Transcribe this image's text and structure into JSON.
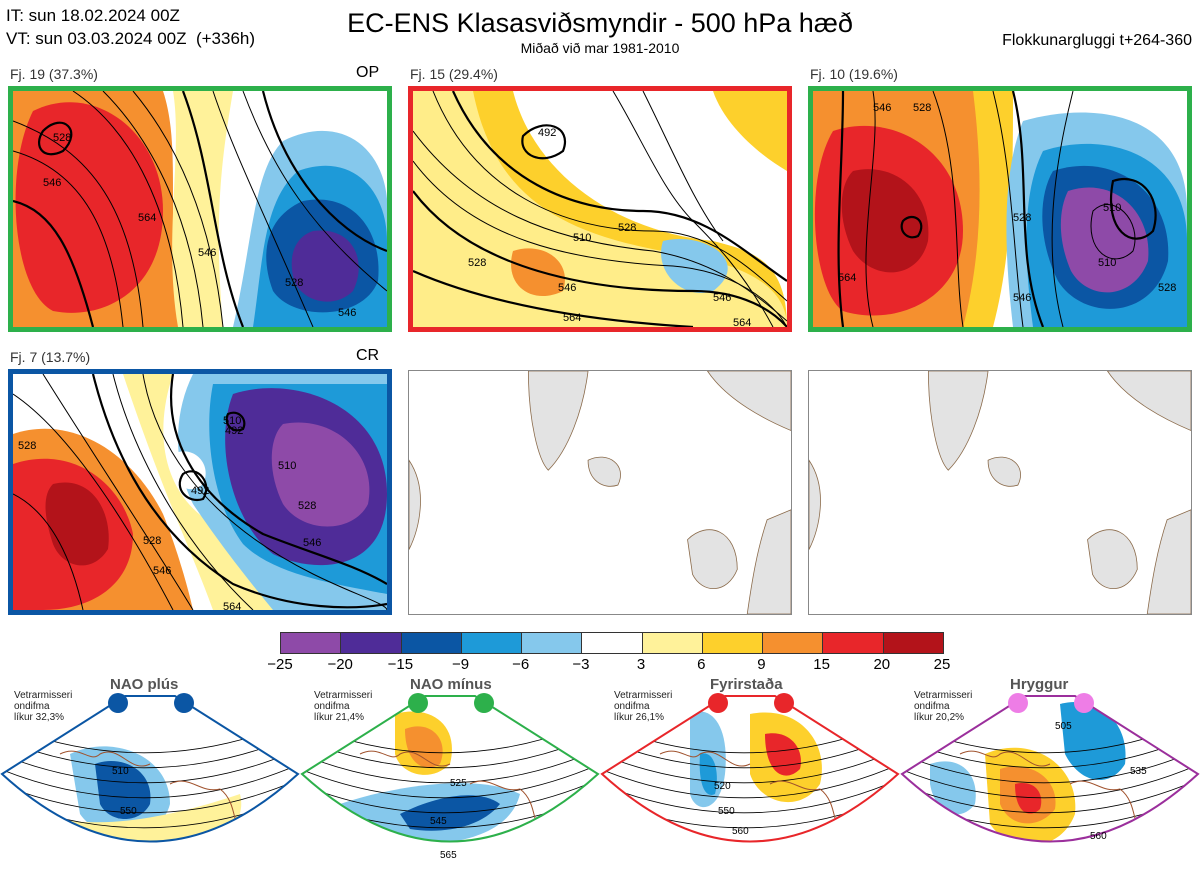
{
  "header": {
    "it_line": "IT: sun 18.02.2024 00Z",
    "vt_line": "VT: sun 03.03.2024 00Z  (+336h)",
    "title": "EC-ENS Klasasviðsmyndir - 500 hPa hæð",
    "subtitle": "Miðað við mar 1981-2010",
    "window_label": "Flokkunargluggi t+264-360"
  },
  "panels": [
    {
      "label": "Fj. 19 (37.3%)",
      "tag": "OP",
      "border_color": "#2db04b",
      "contours": [
        "528",
        "546",
        "564",
        "546",
        "528",
        "546"
      ]
    },
    {
      "label": "Fj. 15 (29.4%)",
      "tag": "",
      "border_color": "#e8262a",
      "contours": [
        "492",
        "510",
        "528",
        "528",
        "546",
        "564",
        "546",
        "564"
      ]
    },
    {
      "label": "Fj. 10 (19.6%)",
      "tag": "",
      "border_color": "#2db04b",
      "contours": [
        "546",
        "528",
        "564",
        "510",
        "510",
        "528",
        "546",
        "528"
      ]
    },
    {
      "label": "Fj. 7 (13.7%)",
      "tag": "CR",
      "border_color": "#0b56a4",
      "contours": [
        "510",
        "492",
        "492",
        "510",
        "528",
        "528",
        "546",
        "546",
        "564",
        "528"
      ]
    }
  ],
  "colorbar": {
    "labels": [
      "−25",
      "−20",
      "−15",
      "−9",
      "−6",
      "−3",
      "3",
      "6",
      "9",
      "15",
      "20",
      "25"
    ],
    "colors": [
      "#8e4aa8",
      "#4f2c98",
      "#0b56a4",
      "#1e9ad8",
      "#85c8ec",
      "#ffffff",
      "#fff29a",
      "#fdd02c",
      "#f5902f",
      "#e8262a",
      "#b3131a"
    ]
  },
  "regimes": [
    {
      "title": "NAO plús",
      "note": "Vetrarmisseri\nondifma\nlíkur 32,3%",
      "color": "#0b56a4",
      "labels": [
        "510",
        "550"
      ]
    },
    {
      "title": "NAO mínus",
      "note": "Vetrarmisseri\nondifma\nlíkur 21,4%",
      "color": "#2db04b",
      "labels": [
        "525",
        "545",
        "565"
      ]
    },
    {
      "title": "Fyrirstaða",
      "note": "Vetrarmisseri\nondifma\nlíkur 26,1%",
      "color": "#e8262a",
      "labels": [
        "520",
        "550",
        "560"
      ]
    },
    {
      "title": "Hryggur",
      "note": "Vetrarmisseri\nondifma\nlíkur 20,2%",
      "color": "#9b2f9c",
      "labels": [
        "505",
        "535",
        "560"
      ]
    }
  ]
}
